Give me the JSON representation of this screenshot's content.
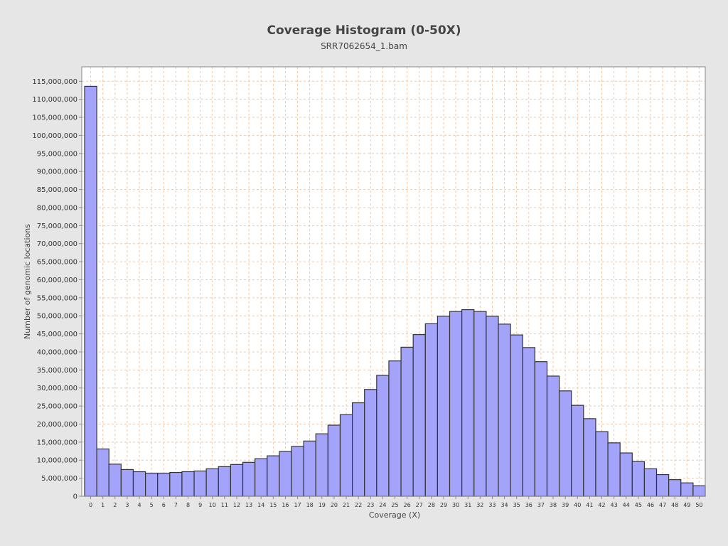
{
  "chart_data": {
    "type": "bar",
    "title": "Coverage Histogram (0-50X)",
    "subtitle": "SRR7062654_1.bam",
    "xlabel": "Coverage (X)",
    "ylabel": "Number of genomic locations",
    "ylim": [
      0,
      119000000
    ],
    "yticks": [
      0,
      5000000,
      10000000,
      15000000,
      20000000,
      25000000,
      30000000,
      35000000,
      40000000,
      45000000,
      50000000,
      55000000,
      60000000,
      65000000,
      70000000,
      75000000,
      80000000,
      85000000,
      90000000,
      95000000,
      100000000,
      105000000,
      110000000,
      115000000
    ],
    "ytick_labels": [
      "0",
      "5,000,000",
      "10,000,000",
      "15,000,000",
      "20,000,000",
      "25,000,000",
      "30,000,000",
      "35,000,000",
      "40,000,000",
      "45,000,000",
      "50,000,000",
      "55,000,000",
      "60,000,000",
      "65,000,000",
      "70,000,000",
      "75,000,000",
      "80,000,000",
      "85,000,000",
      "90,000,000",
      "95,000,000",
      "100,000,000",
      "105,000,000",
      "110,000,000",
      "115,000,000"
    ],
    "categories": [
      "0",
      "1",
      "2",
      "3",
      "4",
      "5",
      "6",
      "7",
      "8",
      "9",
      "10",
      "11",
      "12",
      "13",
      "14",
      "15",
      "16",
      "17",
      "18",
      "19",
      "20",
      "21",
      "22",
      "23",
      "24",
      "25",
      "26",
      "27",
      "28",
      "29",
      "30",
      "31",
      "32",
      "33",
      "34",
      "35",
      "36",
      "37",
      "38",
      "39",
      "40",
      "41",
      "42",
      "43",
      "44",
      "45",
      "46",
      "47",
      "48",
      "49",
      "50"
    ],
    "values": [
      113600000,
      13100000,
      8900000,
      7400000,
      6800000,
      6400000,
      6400000,
      6600000,
      6800000,
      7000000,
      7600000,
      8200000,
      8800000,
      9400000,
      10400000,
      11200000,
      12400000,
      13800000,
      15300000,
      17300000,
      19700000,
      22600000,
      25900000,
      29600000,
      33500000,
      37500000,
      41300000,
      44800000,
      47800000,
      49900000,
      51200000,
      51700000,
      51200000,
      49900000,
      47700000,
      44700000,
      41200000,
      37300000,
      33300000,
      29200000,
      25200000,
      21500000,
      17900000,
      14800000,
      12000000,
      9600000,
      7600000,
      6000000,
      4600000,
      3700000,
      2900000
    ],
    "grid": true,
    "legend": "none",
    "colors": {
      "bar_fill": "#a3a3fa",
      "bar_stroke": "#333333",
      "grid": "#f0c8a8",
      "plot_bg": "#ffffff",
      "page_bg": "#e6e6e6"
    }
  }
}
